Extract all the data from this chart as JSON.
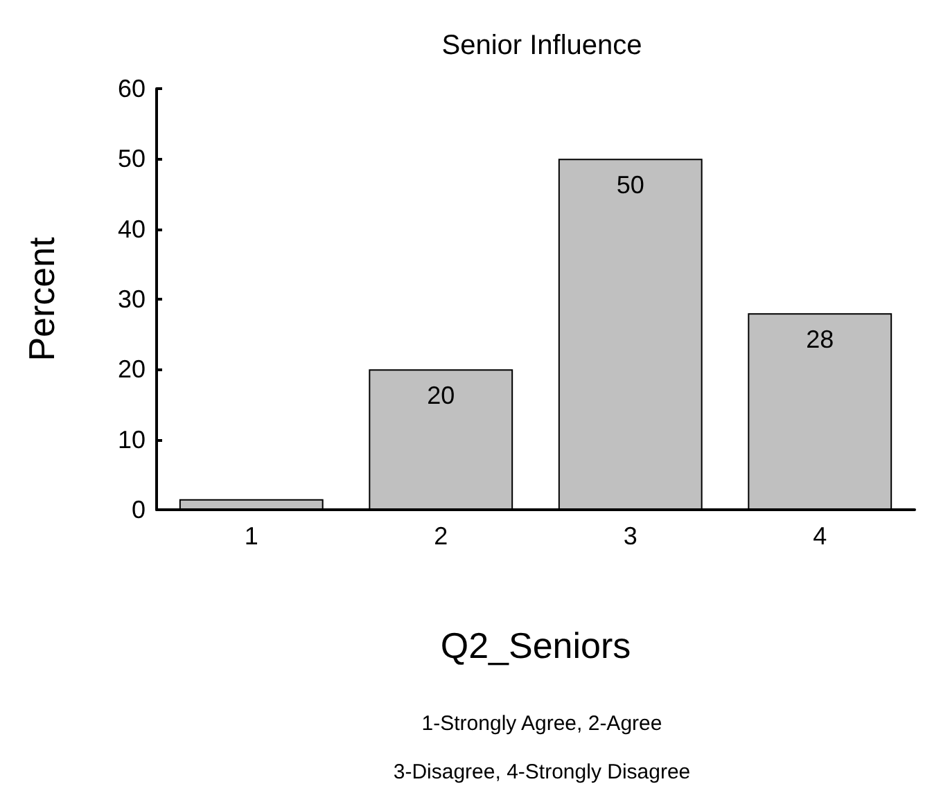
{
  "chart_data": {
    "type": "bar",
    "title": "Senior Influence",
    "xlabel": "Q2_Seniors",
    "ylabel": "Percent",
    "annotations": [
      "1-Strongly Agree, 2-Agree",
      "3-Disagree, 4-Strongly Disagree"
    ],
    "categories": [
      "1",
      "2",
      "3",
      "4"
    ],
    "values": [
      1.5,
      20,
      50,
      28
    ],
    "value_labels": [
      null,
      "20",
      "50",
      "28"
    ],
    "color": "#c0c0c0",
    "ylim": [
      0,
      60
    ],
    "yticks": [
      0,
      10,
      20,
      30,
      40,
      50,
      60
    ],
    "grid": false
  }
}
